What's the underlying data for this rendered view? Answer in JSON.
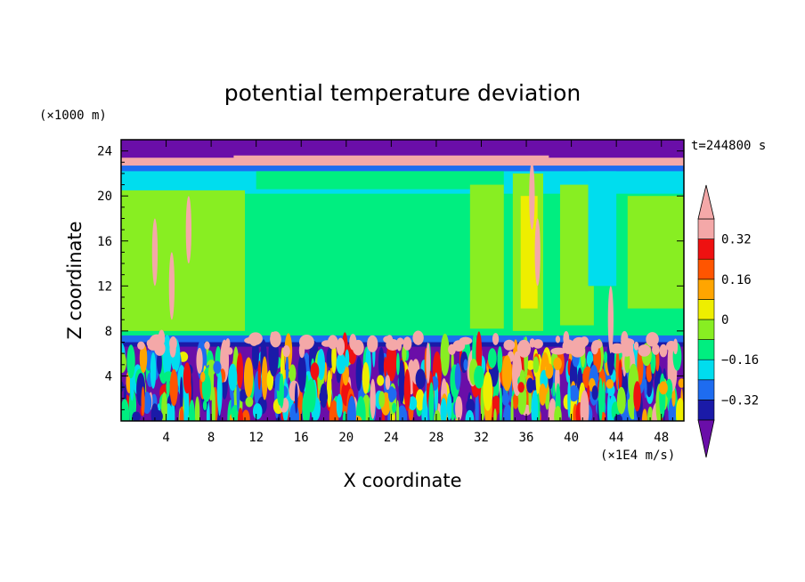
{
  "chart_data": {
    "type": "heatmap",
    "title": "potential temperature deviation",
    "xlabel": "X coordinate",
    "ylabel": "Z coordinate",
    "x_unit": "(×1E4 m/s)",
    "y_unit": "(×1000 m)",
    "time_label": "t=244800 s",
    "xlim": [
      0,
      50
    ],
    "ylim": [
      0,
      25
    ],
    "x_ticks": [
      "4",
      "8",
      "12",
      "16",
      "20",
      "24",
      "28",
      "32",
      "36",
      "40",
      "44",
      "48"
    ],
    "y_ticks": [
      "4",
      "8",
      "12",
      "16",
      "20",
      "24"
    ],
    "colorbar": {
      "levels": [
        -0.4,
        -0.32,
        -0.24,
        -0.16,
        -0.08,
        0,
        0.08,
        0.16,
        0.24,
        0.32,
        0.4
      ],
      "labels": [
        "0.32",
        "0.16",
        "0",
        "−0.16",
        "−0.32"
      ],
      "label_values": [
        0.32,
        0.16,
        0,
        -0.16,
        -0.32
      ],
      "colors": [
        "#6a0ea8",
        "#1a1aa8",
        "#1e6cf0",
        "#00ddee",
        "#00ee80",
        "#88ee22",
        "#eeee00",
        "#ffa500",
        "#ff5500",
        "#ee1111",
        "#f4a8a8"
      ],
      "extend": "both"
    }
  }
}
